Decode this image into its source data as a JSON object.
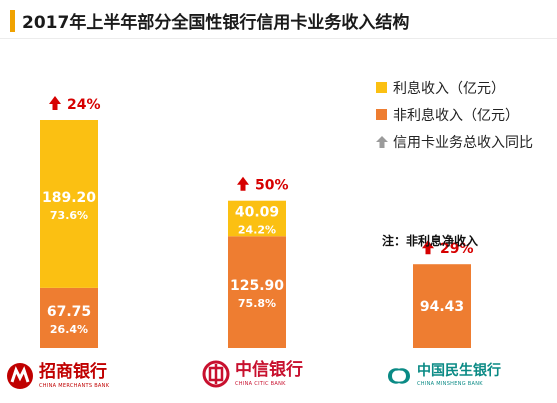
{
  "title": "2017年上半年部分全国性银行信用卡业务收入结构",
  "colors": {
    "title_accent": "#f0a200",
    "interest": "#fbc012",
    "non_interest": "#ee7d31",
    "up_arrow": "#d60000",
    "growth_text": "#d60000",
    "legend_arrow": "#9b9b9b",
    "white_label": "#ffffff"
  },
  "legend": {
    "interest": "利息收入（亿元）",
    "non_interest": "非利息收入（亿元）",
    "growth": "信用卡业务总收入同比"
  },
  "note": "注：非利息净收入",
  "logos": [
    {
      "name": "招商银行",
      "en": "CHINA MERCHANTS BANK",
      "icon": "cmb-logo-icon",
      "color": "#c00000"
    },
    {
      "name": "中信银行",
      "en": "CHINA CITIC BANK",
      "icon": "citic-logo-icon",
      "color": "#c8102e"
    },
    {
      "name": "中国民生银行",
      "en": "CHINA MINSHENG BANK",
      "icon": "minsheng-logo-icon",
      "color": "#0a8a85"
    }
  ],
  "chart_data": {
    "type": "bar",
    "stacked": true,
    "categories": [
      "招商银行",
      "中信银行",
      "中国民生银行"
    ],
    "series": [
      {
        "name": "非利息收入（亿元）",
        "values": [
          67.75,
          125.9,
          94.43
        ],
        "share_labels": [
          "26.4%",
          "75.8%",
          null
        ]
      },
      {
        "name": "利息收入（亿元）",
        "values": [
          189.2,
          40.09,
          null
        ],
        "share_labels": [
          "73.6%",
          "24.2%",
          null
        ]
      }
    ],
    "value_labels": {
      "interest": [
        "189.20",
        "40.09",
        null
      ],
      "non_interest": [
        "67.75",
        "125.90",
        "94.43"
      ]
    },
    "growth_yoy": [
      "24%",
      "50%",
      "29%"
    ],
    "growth_series_name": "信用卡业务总收入同比",
    "ylim": [
      0,
      256.95
    ],
    "legend_position": "top-right",
    "grid": false
  }
}
